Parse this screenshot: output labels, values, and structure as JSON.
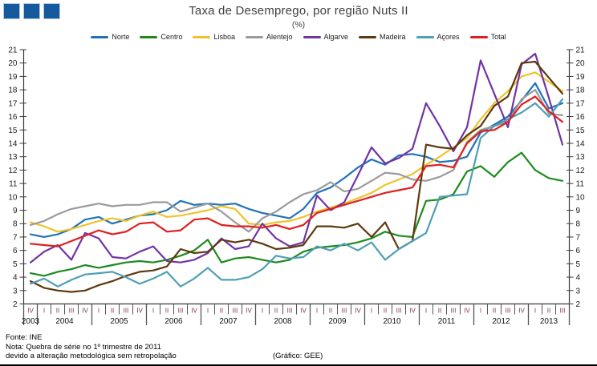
{
  "header": {
    "title": "Taxa de Desemprego, por região Nuts II",
    "subtitle": "(%)"
  },
  "logo": {
    "color": "#15599E",
    "square_count": 3
  },
  "footer": {
    "fonte": "Fonte: INE",
    "nota_line1": "Nota: Quebra de série no 1º trimestre de 2011",
    "nota_line2": "devido a alteração metodológica sem retropolação",
    "credit": "(Gráfico: GEE)"
  },
  "chart_data": {
    "type": "line",
    "title": "Taxa de Desemprego, por região Nuts II",
    "subtitle": "(%)",
    "ylabel": "",
    "xlabel": "",
    "ylim": [
      2,
      21
    ],
    "y_tick_step": 1,
    "grid": false,
    "legend_position": "top",
    "axis_color": "#3a3a3a",
    "quarter_label_color": "#7E3052",
    "year_label_color": "#111111",
    "quarter_labels": [
      "IV",
      "I",
      "II",
      "III",
      "IV",
      "I",
      "II",
      "III",
      "IV",
      "I",
      "II",
      "III",
      "IV",
      "I",
      "II",
      "III",
      "IV",
      "I",
      "II",
      "III",
      "IV",
      "I",
      "II",
      "III",
      "IV",
      "I",
      "II",
      "III",
      "IV",
      "I",
      "II",
      "III",
      "IV",
      "I",
      "II",
      "III",
      "IV",
      "I",
      "II",
      "III"
    ],
    "year_groups": [
      {
        "label": "2003",
        "count": 1
      },
      {
        "label": "2004",
        "count": 4
      },
      {
        "label": "2005",
        "count": 4
      },
      {
        "label": "2006",
        "count": 4
      },
      {
        "label": "2007",
        "count": 4
      },
      {
        "label": "2008",
        "count": 4
      },
      {
        "label": "2009",
        "count": 4
      },
      {
        "label": "2010",
        "count": 4
      },
      {
        "label": "2011",
        "count": 4
      },
      {
        "label": "2012",
        "count": 4
      },
      {
        "label": "2013",
        "count": 3
      }
    ],
    "series": [
      {
        "name": "Norte",
        "color": "#1F72B8",
        "values": [
          7.2,
          7.0,
          7.2,
          7.6,
          8.3,
          8.5,
          8.0,
          8.3,
          8.6,
          8.7,
          9.0,
          9.7,
          9.4,
          9.5,
          9.4,
          9.5,
          9.1,
          8.8,
          8.6,
          8.4,
          9.1,
          10.3,
          10.7,
          11.4,
          12.2,
          12.8,
          12.4,
          13.1,
          13.2,
          13.0,
          12.6,
          12.7,
          13.0,
          14.8,
          15.4,
          16.0,
          17.2,
          18.5,
          16.6,
          17.0
        ]
      },
      {
        "name": "Centro",
        "color": "#1E8A1E",
        "values": [
          4.3,
          4.1,
          4.4,
          4.6,
          4.9,
          4.7,
          4.9,
          5.1,
          5.2,
          5.1,
          5.3,
          5.6,
          6.0,
          6.8,
          5.1,
          5.4,
          5.5,
          5.3,
          5.1,
          5.3,
          5.9,
          6.2,
          6.3,
          6.4,
          6.6,
          6.9,
          7.4,
          7.1,
          7.0,
          9.7,
          9.8,
          10.2,
          11.9,
          12.3,
          11.5,
          12.6,
          13.3,
          12.0,
          11.4,
          11.2
        ]
      },
      {
        "name": "Lisboa",
        "color": "#EFC32A",
        "values": [
          8.1,
          7.8,
          7.4,
          7.6,
          7.9,
          8.2,
          8.4,
          8.2,
          8.6,
          8.9,
          8.5,
          8.6,
          8.8,
          9.0,
          9.3,
          9.1,
          8.0,
          7.9,
          8.1,
          8.2,
          8.5,
          8.9,
          9.2,
          9.5,
          9.9,
          10.3,
          10.9,
          11.3,
          11.7,
          12.4,
          13.0,
          13.7,
          14.4,
          15.8,
          17.0,
          17.9,
          19.0,
          19.3,
          18.6,
          17.9
        ]
      },
      {
        "name": "Alentejo",
        "color": "#9B9B9B",
        "values": [
          7.9,
          8.2,
          8.7,
          9.1,
          9.3,
          9.5,
          9.3,
          9.4,
          9.4,
          9.6,
          9.6,
          8.9,
          9.2,
          9.5,
          8.9,
          8.1,
          7.4,
          8.4,
          8.9,
          9.6,
          10.2,
          10.5,
          11.1,
          10.4,
          10.6,
          11.2,
          11.8,
          11.7,
          11.3,
          11.2,
          11.5,
          12.0,
          14.1,
          15.0,
          15.3,
          15.6,
          17.3,
          18.0,
          16.2,
          16.1
        ]
      },
      {
        "name": "Algarve",
        "color": "#7233A5",
        "values": [
          5.1,
          5.9,
          6.4,
          5.3,
          7.3,
          6.9,
          5.5,
          5.4,
          5.9,
          6.3,
          5.2,
          5.1,
          5.3,
          5.8,
          6.9,
          6.1,
          6.3,
          8.0,
          6.9,
          6.3,
          6.6,
          10.1,
          9.0,
          9.6,
          11.6,
          13.7,
          12.5,
          12.9,
          13.6,
          17.0,
          15.3,
          13.4,
          15.2,
          20.2,
          17.7,
          15.2,
          19.9,
          20.7,
          17.4,
          13.9
        ]
      },
      {
        "name": "Madeira",
        "color": "#5E390E",
        "values": [
          3.7,
          3.2,
          3.0,
          2.9,
          3.0,
          3.4,
          3.7,
          4.1,
          4.4,
          4.5,
          4.8,
          6.1,
          5.8,
          5.9,
          6.8,
          6.6,
          6.8,
          6.5,
          6.1,
          6.2,
          6.4,
          7.8,
          7.8,
          7.7,
          8.0,
          7.0,
          8.1,
          6.1,
          6.7,
          13.9,
          13.7,
          13.6,
          14.6,
          15.3,
          16.8,
          17.5,
          20.0,
          20.1,
          18.9,
          17.7
        ]
      },
      {
        "name": "Açores",
        "color": "#4F9FB5",
        "values": [
          3.5,
          3.9,
          3.3,
          3.8,
          4.2,
          4.3,
          4.4,
          4.0,
          3.5,
          3.9,
          4.4,
          3.3,
          3.9,
          4.7,
          3.8,
          3.8,
          4.0,
          4.6,
          5.6,
          5.4,
          5.5,
          6.3,
          6.0,
          6.5,
          6.0,
          6.6,
          5.3,
          6.1,
          6.7,
          7.3,
          10.0,
          10.1,
          10.2,
          14.4,
          15.3,
          15.8,
          16.3,
          17.0,
          16.0,
          17.3
        ]
      },
      {
        "name": "Total",
        "color": "#E01F1F",
        "values": [
          6.5,
          6.4,
          6.3,
          6.7,
          7.1,
          7.5,
          7.2,
          7.4,
          8.0,
          8.1,
          7.4,
          7.5,
          8.3,
          8.4,
          7.9,
          7.8,
          7.8,
          7.7,
          7.9,
          7.6,
          7.9,
          8.8,
          9.1,
          9.4,
          9.7,
          10.0,
          10.3,
          10.5,
          10.7,
          12.3,
          12.4,
          12.2,
          14.0,
          14.9,
          15.0,
          15.6,
          16.9,
          17.5,
          16.4,
          15.6
        ]
      }
    ]
  }
}
